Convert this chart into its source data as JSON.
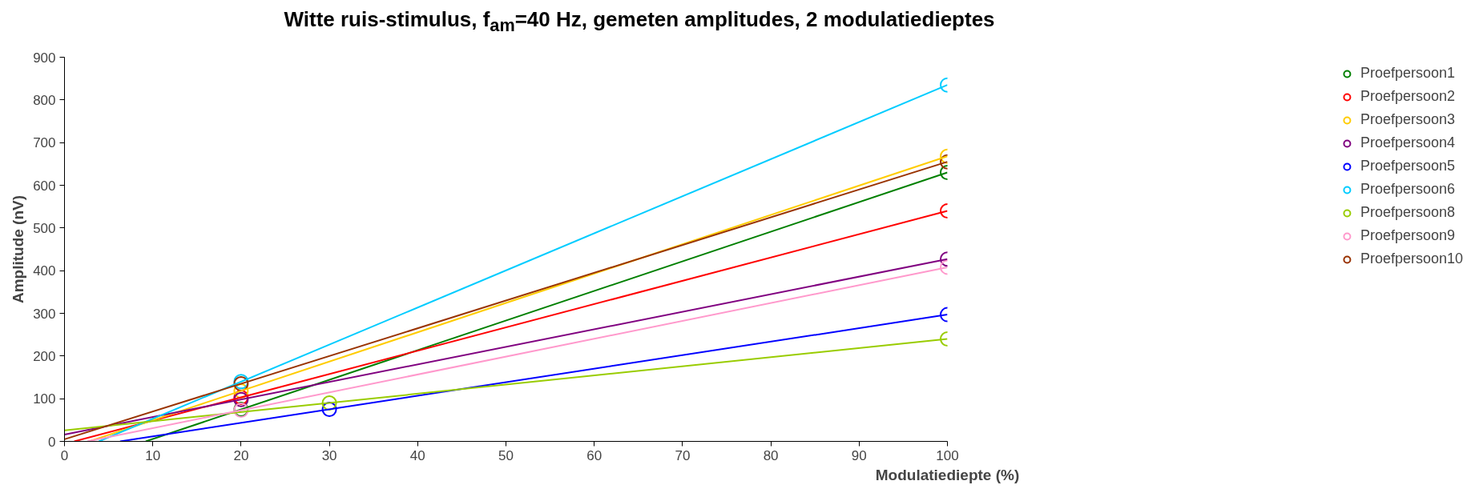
{
  "chart_data": {
    "type": "scatter",
    "title": "Witte ruis-stimulus, f$_{am}$=40 Hz, gemeten amplitudes, 2 modulatiedieptes",
    "xlabel": "Modulatiediepte (%)",
    "ylabel": "Amplitude (nV)",
    "xlim": [
      0,
      100
    ],
    "xticks": [
      0,
      10,
      20,
      30,
      40,
      50,
      60,
      70,
      80,
      90,
      100
    ],
    "ylim": [
      0,
      900
    ],
    "yticks": [
      0,
      100,
      200,
      300,
      400,
      500,
      600,
      700,
      800,
      900
    ],
    "grid": false,
    "legend": "right",
    "marker": "circle",
    "series": [
      {
        "name": "Proefpersoon1",
        "color": "#008000",
        "x": [
          20,
          100
        ],
        "values": [
          75,
          630
        ]
      },
      {
        "name": "Proefpersoon2",
        "color": "#ff0000",
        "x": [
          20,
          100
        ],
        "values": [
          103,
          540
        ]
      },
      {
        "name": "Proefpersoon3",
        "color": "#ffcc00",
        "x": [
          20,
          100
        ],
        "values": [
          118,
          668
        ]
      },
      {
        "name": "Proefpersoon4",
        "color": "#800080",
        "x": [
          20,
          100
        ],
        "values": [
          98,
          427
        ]
      },
      {
        "name": "Proefpersoon5",
        "color": "#0000ff",
        "x": [
          30,
          100
        ],
        "values": [
          75,
          297
        ]
      },
      {
        "name": "Proefpersoon6",
        "color": "#00ccff",
        "x": [
          20,
          100
        ],
        "values": [
          140,
          835
        ]
      },
      {
        "name": "Proefpersoon8",
        "color": "#99cc00",
        "x": [
          30,
          100
        ],
        "values": [
          90,
          240
        ]
      },
      {
        "name": "Proefpersoon9",
        "color": "#ff99cc",
        "x": [
          20,
          100
        ],
        "values": [
          73,
          408
        ]
      },
      {
        "name": "Proefpersoon10",
        "color": "#993300",
        "x": [
          20,
          100
        ],
        "values": [
          135,
          655
        ]
      },
      {
        "type": "line",
        "marker": "none",
        "color": "#008000",
        "x": [
          9.2,
          100
        ],
        "values": [
          0,
          630
        ]
      },
      {
        "type": "line",
        "marker": "none",
        "color": "#ff0000",
        "x": [
          1.1,
          100
        ],
        "values": [
          0,
          540
        ]
      },
      {
        "type": "line",
        "marker": "none",
        "color": "#ffcc00",
        "x": [
          2.8,
          100
        ],
        "values": [
          0,
          668
        ]
      },
      {
        "type": "line",
        "marker": "none",
        "color": "#800080",
        "x": [
          0,
          100
        ],
        "values": [
          16,
          427
        ]
      },
      {
        "type": "line",
        "marker": "none",
        "color": "#0000ff",
        "x": [
          6.3,
          100
        ],
        "values": [
          0,
          297
        ]
      },
      {
        "type": "line",
        "marker": "none",
        "color": "#00ccff",
        "x": [
          3.9,
          100
        ],
        "values": [
          0,
          835
        ]
      },
      {
        "type": "line",
        "marker": "none",
        "color": "#99cc00",
        "x": [
          0,
          100
        ],
        "values": [
          26,
          240
        ]
      },
      {
        "type": "line",
        "marker": "none",
        "color": "#ff99cc",
        "x": [
          2.6,
          100
        ],
        "values": [
          0,
          408
        ]
      },
      {
        "type": "line",
        "marker": "none",
        "color": "#993300",
        "x": [
          0,
          100
        ],
        "values": [
          5,
          655
        ]
      }
    ]
  }
}
